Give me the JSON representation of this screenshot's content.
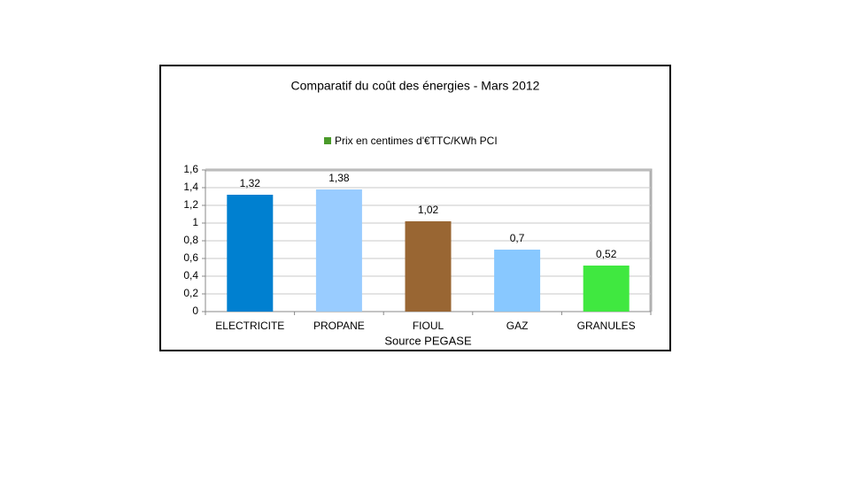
{
  "chart_data": {
    "type": "bar",
    "title": "Comparatif du coût des énergies - Mars 2012",
    "xlabel": "Source PEGASE",
    "categories": [
      "ELECTRICITE",
      "PROPANE",
      "FIOUL",
      "GAZ",
      "GRANULES"
    ],
    "series": [
      {
        "name": "Prix en centimes d'€TTC/KWh PCI",
        "color": "#4a9a2a",
        "colors": [
          "#0080d0",
          "#99ccff",
          "#996633",
          "#88c8ff",
          "#40e840"
        ],
        "values": [
          1.32,
          1.38,
          1.02,
          0.7,
          0.52
        ],
        "value_labels": [
          "1,32",
          "1,38",
          "1,02",
          "0,7",
          "0,52"
        ]
      }
    ],
    "ylim": [
      0,
      1.6
    ],
    "yticks": [
      0,
      {
        "value": 0.2,
        "label": "0,2"
      },
      {
        "value": 0.4,
        "label": "0,4"
      },
      {
        "value": 0.6,
        "label": "0,6"
      },
      {
        "value": 0.8,
        "label": "0,8"
      },
      1,
      {
        "value": 1.2,
        "label": "1,2"
      },
      {
        "value": 1.4,
        "label": "1,4"
      },
      {
        "value": 1.6,
        "label": "1,6"
      }
    ],
    "grid": true,
    "legend": "top"
  }
}
